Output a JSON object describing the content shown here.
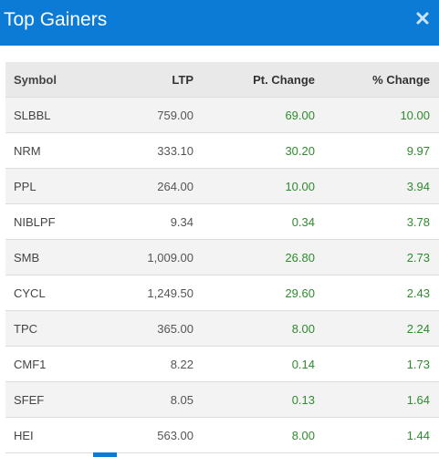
{
  "header": {
    "title": "Top Gainers",
    "close_icon": "close-icon",
    "background_color": "#0b7bd6"
  },
  "table": {
    "columns": [
      "Symbol",
      "LTP",
      "Pt. Change",
      "% Change"
    ],
    "rows": [
      {
        "symbol": "SLBBL",
        "ltp": "759.00",
        "pt_change": "69.00",
        "pct_change": "10.00"
      },
      {
        "symbol": "NRM",
        "ltp": "333.10",
        "pt_change": "30.20",
        "pct_change": "9.97"
      },
      {
        "symbol": "PPL",
        "ltp": "264.00",
        "pt_change": "10.00",
        "pct_change": "3.94"
      },
      {
        "symbol": "NIBLPF",
        "ltp": "9.34",
        "pt_change": "0.34",
        "pct_change": "3.78"
      },
      {
        "symbol": "SMB",
        "ltp": "1,009.00",
        "pt_change": "26.80",
        "pct_change": "2.73"
      },
      {
        "symbol": "CYCL",
        "ltp": "1,249.50",
        "pt_change": "29.60",
        "pct_change": "2.43"
      },
      {
        "symbol": "TPC",
        "ltp": "365.00",
        "pt_change": "8.00",
        "pct_change": "2.24"
      },
      {
        "symbol": "CMF1",
        "ltp": "8.22",
        "pt_change": "0.14",
        "pct_change": "1.73"
      },
      {
        "symbol": "SFEF",
        "ltp": "8.05",
        "pt_change": "0.13",
        "pct_change": "1.64"
      },
      {
        "symbol": "HEI",
        "ltp": "563.00",
        "pt_change": "8.00",
        "pct_change": "1.44"
      }
    ],
    "positive_color": "#2e8b2e"
  }
}
